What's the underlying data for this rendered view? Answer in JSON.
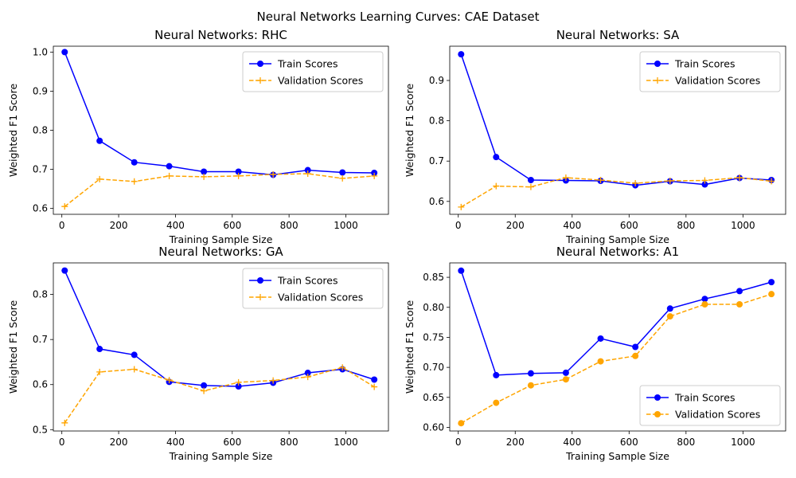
{
  "figure": {
    "title": "Neural Networks Learning Curves: CAE Dataset"
  },
  "colors": {
    "train": "#0000ff",
    "validation": "#ffa500"
  },
  "chart_data": [
    {
      "type": "line",
      "title": "Neural Networks: RHC",
      "xlabel": "Training Sample Size",
      "ylabel": "Weighted F1 Score",
      "xlim": [
        -30,
        1150
      ],
      "ylim": [
        0.585,
        1.015
      ],
      "xticks": [
        0,
        200,
        400,
        600,
        800,
        1000
      ],
      "yticks": [
        0.6,
        0.7,
        0.8,
        0.9,
        1.0
      ],
      "ytick_labels": [
        "0.6",
        "0.7",
        "0.8",
        "0.9",
        "1.0"
      ],
      "legend": "upper right",
      "x": [
        10,
        133,
        255,
        378,
        500,
        622,
        744,
        866,
        988,
        1100
      ],
      "series": [
        {
          "name": "Train Scores",
          "color": "#0000ff",
          "style": "solid",
          "marker": "circle",
          "values": [
            1.0,
            0.773,
            0.718,
            0.708,
            0.694,
            0.694,
            0.686,
            0.698,
            0.692,
            0.691
          ]
        },
        {
          "name": "Validation Scores",
          "color": "#ffa500",
          "style": "dashed",
          "marker": "plus",
          "values": [
            0.605,
            0.675,
            0.669,
            0.683,
            0.681,
            0.683,
            0.687,
            0.689,
            0.677,
            0.683
          ]
        }
      ]
    },
    {
      "type": "line",
      "title": "Neural Networks: SA",
      "xlabel": "Training Sample Size",
      "ylabel": "Weighted F1 Score",
      "xlim": [
        -30,
        1150
      ],
      "ylim": [
        0.568,
        0.985
      ],
      "xticks": [
        0,
        200,
        400,
        600,
        800,
        1000
      ],
      "yticks": [
        0.6,
        0.7,
        0.8,
        0.9
      ],
      "ytick_labels": [
        "0.6",
        "0.7",
        "0.8",
        "0.9"
      ],
      "legend": "upper right",
      "x": [
        10,
        133,
        255,
        378,
        500,
        622,
        744,
        866,
        988,
        1100
      ],
      "series": [
        {
          "name": "Train Scores",
          "color": "#0000ff",
          "style": "solid",
          "marker": "circle",
          "values": [
            0.965,
            0.71,
            0.653,
            0.652,
            0.651,
            0.64,
            0.65,
            0.642,
            0.658,
            0.653
          ]
        },
        {
          "name": "Validation Scores",
          "color": "#ffa500",
          "style": "dashed",
          "marker": "plus",
          "values": [
            0.586,
            0.638,
            0.636,
            0.659,
            0.653,
            0.645,
            0.651,
            0.652,
            0.659,
            0.65
          ]
        }
      ]
    },
    {
      "type": "line",
      "title": "Neural Networks: GA",
      "xlabel": "Training Sample Size",
      "ylabel": "Weighted F1 Score",
      "xlim": [
        -30,
        1150
      ],
      "ylim": [
        0.497,
        0.87
      ],
      "xticks": [
        0,
        200,
        400,
        600,
        800,
        1000
      ],
      "yticks": [
        0.5,
        0.6,
        0.7,
        0.8
      ],
      "ytick_labels": [
        "0.5",
        "0.6",
        "0.7",
        "0.8"
      ],
      "legend": "upper right",
      "x": [
        10,
        133,
        255,
        378,
        500,
        622,
        744,
        866,
        988,
        1100
      ],
      "series": [
        {
          "name": "Train Scores",
          "color": "#0000ff",
          "style": "solid",
          "marker": "circle",
          "values": [
            0.853,
            0.679,
            0.666,
            0.606,
            0.598,
            0.596,
            0.604,
            0.626,
            0.634,
            0.611
          ]
        },
        {
          "name": "Validation Scores",
          "color": "#ffa500",
          "style": "dashed",
          "marker": "plus",
          "values": [
            0.515,
            0.628,
            0.634,
            0.61,
            0.586,
            0.605,
            0.609,
            0.617,
            0.638,
            0.595
          ]
        }
      ]
    },
    {
      "type": "line",
      "title": "Neural Networks: A1",
      "xlabel": "Training Sample Size",
      "ylabel": "Weighted F1 Score",
      "xlim": [
        -30,
        1150
      ],
      "ylim": [
        0.594,
        0.874
      ],
      "xticks": [
        0,
        200,
        400,
        600,
        800,
        1000
      ],
      "yticks": [
        0.6,
        0.65,
        0.7,
        0.75,
        0.8,
        0.85
      ],
      "ytick_labels": [
        "0.60",
        "0.65",
        "0.70",
        "0.75",
        "0.80",
        "0.85"
      ],
      "legend": "lower right",
      "x": [
        10,
        133,
        255,
        378,
        500,
        622,
        744,
        866,
        988,
        1100
      ],
      "series": [
        {
          "name": "Train Scores",
          "color": "#0000ff",
          "style": "solid",
          "marker": "circle",
          "values": [
            0.861,
            0.687,
            0.69,
            0.691,
            0.748,
            0.734,
            0.798,
            0.814,
            0.827,
            0.842
          ]
        },
        {
          "name": "Validation Scores",
          "color": "#ffa500",
          "style": "dashed",
          "marker": "circle",
          "values": [
            0.607,
            0.641,
            0.67,
            0.68,
            0.71,
            0.719,
            0.785,
            0.805,
            0.805,
            0.822
          ]
        }
      ]
    }
  ]
}
